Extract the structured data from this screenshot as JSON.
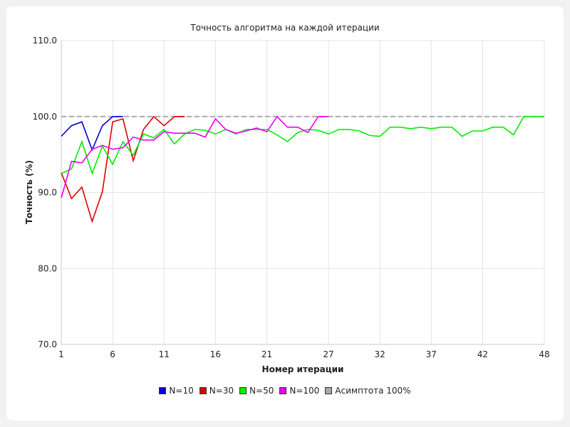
{
  "chart_data": {
    "type": "line",
    "title": "Точность алгоритма на каждой итерации",
    "xlabel": "Номер итерации",
    "ylabel": "Точность (%)",
    "xlim": [
      1,
      48
    ],
    "ylim": [
      70,
      110
    ],
    "x_ticks": [
      1,
      6,
      11,
      16,
      21,
      27,
      32,
      37,
      42,
      48
    ],
    "y_ticks": [
      "70.0",
      "80.0",
      "90.0",
      "100.0",
      "110.0"
    ],
    "grid": true,
    "legend_position": "bottom",
    "series": [
      {
        "name": "N=10",
        "color": "#0000dd",
        "x": [
          1,
          2,
          3,
          4,
          5,
          6,
          7
        ],
        "y": [
          97.4,
          98.8,
          99.3,
          95.6,
          98.8,
          100.0,
          100.0
        ]
      },
      {
        "name": "N=30",
        "color": "#dd0000",
        "x": [
          1,
          2,
          3,
          4,
          5,
          6,
          7,
          8,
          9,
          10,
          11,
          12,
          13
        ],
        "y": [
          92.6,
          89.2,
          90.7,
          86.2,
          90.1,
          99.3,
          99.7,
          94.2,
          98.3,
          100.0,
          98.8,
          100.0,
          100.0
        ]
      },
      {
        "name": "N=50",
        "color": "#00ee00",
        "x": [
          1,
          2,
          3,
          4,
          5,
          6,
          7,
          8,
          9,
          10,
          11,
          12,
          13,
          14,
          15,
          16,
          17,
          18,
          19,
          20,
          21,
          22,
          23,
          24,
          25,
          26,
          27,
          28,
          29,
          30,
          31,
          32,
          33,
          34,
          35,
          36,
          37,
          38,
          39,
          40,
          41,
          42,
          43,
          44,
          45,
          46,
          47,
          48
        ],
        "y": [
          92.5,
          93.1,
          96.7,
          92.5,
          96.1,
          93.7,
          96.7,
          94.9,
          97.7,
          97.2,
          98.3,
          96.4,
          97.7,
          98.3,
          98.2,
          97.7,
          98.3,
          97.7,
          98.3,
          98.3,
          98.3,
          97.6,
          96.7,
          97.9,
          98.3,
          98.2,
          97.7,
          98.3,
          98.3,
          98.1,
          97.5,
          97.4,
          98.6,
          98.6,
          98.4,
          98.6,
          98.4,
          98.6,
          98.6,
          97.4,
          98.1,
          98.1,
          98.6,
          98.6,
          97.6,
          100.0,
          100.0,
          100.0
        ]
      },
      {
        "name": "N=100",
        "color": "#ee00ee",
        "x": [
          1,
          2,
          3,
          4,
          5,
          6,
          7,
          8,
          9,
          10,
          11,
          12,
          13,
          14,
          15,
          16,
          17,
          18,
          19,
          20,
          21,
          22,
          23,
          24,
          25,
          26,
          27
        ],
        "y": [
          89.3,
          94.1,
          93.9,
          95.7,
          96.2,
          95.7,
          95.9,
          97.3,
          96.9,
          96.9,
          98.0,
          97.8,
          97.8,
          97.8,
          97.3,
          99.7,
          98.3,
          97.8,
          98.1,
          98.5,
          98.0,
          100.0,
          98.6,
          98.6,
          97.9,
          100.0,
          100.0
        ]
      },
      {
        "name": "Асимптота 100%",
        "color": "#aaaaaa",
        "dashed": true,
        "x": [
          1,
          48
        ],
        "y": [
          100.0,
          100.0
        ]
      }
    ]
  }
}
